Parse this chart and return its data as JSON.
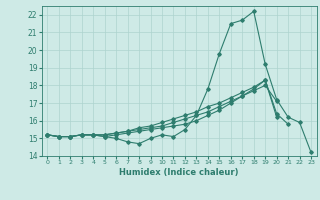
{
  "title": "",
  "xlabel": "Humidex (Indice chaleur)",
  "xlim": [
    -0.5,
    23.5
  ],
  "ylim": [
    14,
    22.5
  ],
  "yticks": [
    14,
    15,
    16,
    17,
    18,
    19,
    20,
    21,
    22
  ],
  "xticks": [
    0,
    1,
    2,
    3,
    4,
    5,
    6,
    7,
    8,
    9,
    10,
    11,
    12,
    13,
    14,
    15,
    16,
    17,
    18,
    19,
    20,
    21,
    22,
    23
  ],
  "background_color": "#ceeae6",
  "grid_color": "#aed4ce",
  "line_color": "#2e7d6e",
  "tick_color": "#2e7d6e",
  "lines": [
    [
      15.2,
      15.1,
      15.1,
      15.2,
      15.2,
      15.1,
      15.0,
      14.8,
      14.7,
      15.0,
      15.2,
      15.1,
      15.5,
      16.3,
      17.8,
      19.8,
      21.5,
      21.7,
      22.2,
      19.2,
      17.2,
      16.2,
      15.9,
      14.2
    ],
    [
      15.2,
      15.1,
      15.1,
      15.2,
      15.2,
      15.1,
      15.2,
      15.3,
      15.4,
      15.5,
      15.6,
      15.7,
      15.8,
      16.0,
      16.3,
      16.6,
      17.0,
      17.4,
      17.8,
      18.3,
      16.4,
      15.8,
      null,
      null
    ],
    [
      15.2,
      15.1,
      15.1,
      15.2,
      15.2,
      15.2,
      15.3,
      15.4,
      15.5,
      15.6,
      15.7,
      15.9,
      16.1,
      16.3,
      16.5,
      16.8,
      17.1,
      17.4,
      17.7,
      18.0,
      17.1,
      null,
      null,
      null
    ],
    [
      15.2,
      15.1,
      15.1,
      15.2,
      15.2,
      15.2,
      15.3,
      15.4,
      15.6,
      15.7,
      15.9,
      16.1,
      16.3,
      16.5,
      16.8,
      17.0,
      17.3,
      17.6,
      17.9,
      18.3,
      16.2,
      null,
      null,
      null
    ]
  ]
}
